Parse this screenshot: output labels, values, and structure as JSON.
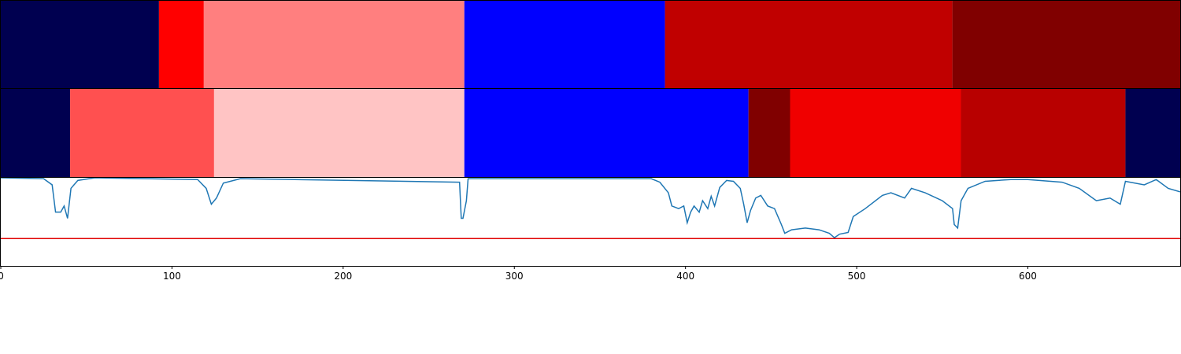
{
  "chart_data": [
    {
      "type": "segments",
      "xlim": [
        0,
        689
      ],
      "segments": [
        {
          "start": 0,
          "end": 92.4,
          "color": "#000050"
        },
        {
          "start": 92.4,
          "end": 118.6,
          "color": "#ff0000"
        },
        {
          "start": 118.6,
          "end": 270.8,
          "color": "#ff7f7f"
        },
        {
          "start": 270.8,
          "end": 388,
          "color": "#0000ff"
        },
        {
          "start": 388,
          "end": 555.9,
          "color": "#c00000"
        },
        {
          "start": 555.9,
          "end": 689,
          "color": "#800000"
        }
      ]
    },
    {
      "type": "segments",
      "xlim": [
        0,
        689
      ],
      "segments": [
        {
          "start": 0,
          "end": 40.5,
          "color": "#000050"
        },
        {
          "start": 40.5,
          "end": 124.6,
          "color": "#ff5050"
        },
        {
          "start": 124.6,
          "end": 270.8,
          "color": "#ffc4c4"
        },
        {
          "start": 270.8,
          "end": 436.8,
          "color": "#0000ff"
        },
        {
          "start": 436.8,
          "end": 461.1,
          "color": "#800000"
        },
        {
          "start": 461.1,
          "end": 560.9,
          "color": "#f00000"
        },
        {
          "start": 560.9,
          "end": 657,
          "color": "#b80000"
        },
        {
          "start": 657,
          "end": 689,
          "color": "#000050"
        }
      ]
    },
    {
      "type": "line",
      "xlim": [
        0,
        689
      ],
      "ylim": [
        0,
        1
      ],
      "xticks": [
        0,
        100,
        200,
        300,
        400,
        500,
        600
      ],
      "hline": {
        "value": 0.31,
        "color": "#e00000"
      },
      "x": [
        0,
        25,
        30,
        32,
        35,
        37,
        39,
        41,
        45,
        55,
        115,
        120,
        123,
        126,
        130,
        140,
        268,
        269,
        270,
        272,
        273,
        380,
        385,
        390,
        392,
        396,
        399,
        401,
        403,
        405,
        408,
        410,
        413,
        415,
        417,
        420,
        424,
        428,
        432,
        434,
        436,
        438,
        441,
        444,
        448,
        452,
        456,
        458,
        462,
        470,
        478,
        484,
        487,
        490,
        495,
        498,
        505,
        515,
        520,
        528,
        532,
        540,
        550,
        556,
        557,
        559,
        561,
        565,
        575,
        590,
        600,
        620,
        630,
        640,
        648,
        654,
        657,
        668,
        675,
        682,
        689
      ],
      "series": [
        {
          "color": "#1f77b4",
          "values": [
            1.0,
            0.99,
            0.92,
            0.61,
            0.61,
            0.68,
            0.54,
            0.88,
            0.97,
            1.0,
            0.98,
            0.88,
            0.7,
            0.77,
            0.94,
            0.99,
            0.95,
            0.54,
            0.54,
            0.74,
            0.99,
            0.99,
            0.95,
            0.83,
            0.68,
            0.65,
            0.68,
            0.49,
            0.61,
            0.68,
            0.61,
            0.74,
            0.65,
            0.79,
            0.68,
            0.89,
            0.97,
            0.96,
            0.88,
            0.7,
            0.49,
            0.63,
            0.77,
            0.8,
            0.68,
            0.65,
            0.47,
            0.37,
            0.41,
            0.43,
            0.41,
            0.37,
            0.32,
            0.36,
            0.38,
            0.56,
            0.65,
            0.8,
            0.83,
            0.77,
            0.88,
            0.83,
            0.74,
            0.65,
            0.47,
            0.43,
            0.74,
            0.88,
            0.96,
            0.98,
            0.98,
            0.95,
            0.88,
            0.74,
            0.77,
            0.7,
            0.96,
            0.92,
            0.98,
            0.88,
            0.84
          ]
        }
      ]
    }
  ]
}
